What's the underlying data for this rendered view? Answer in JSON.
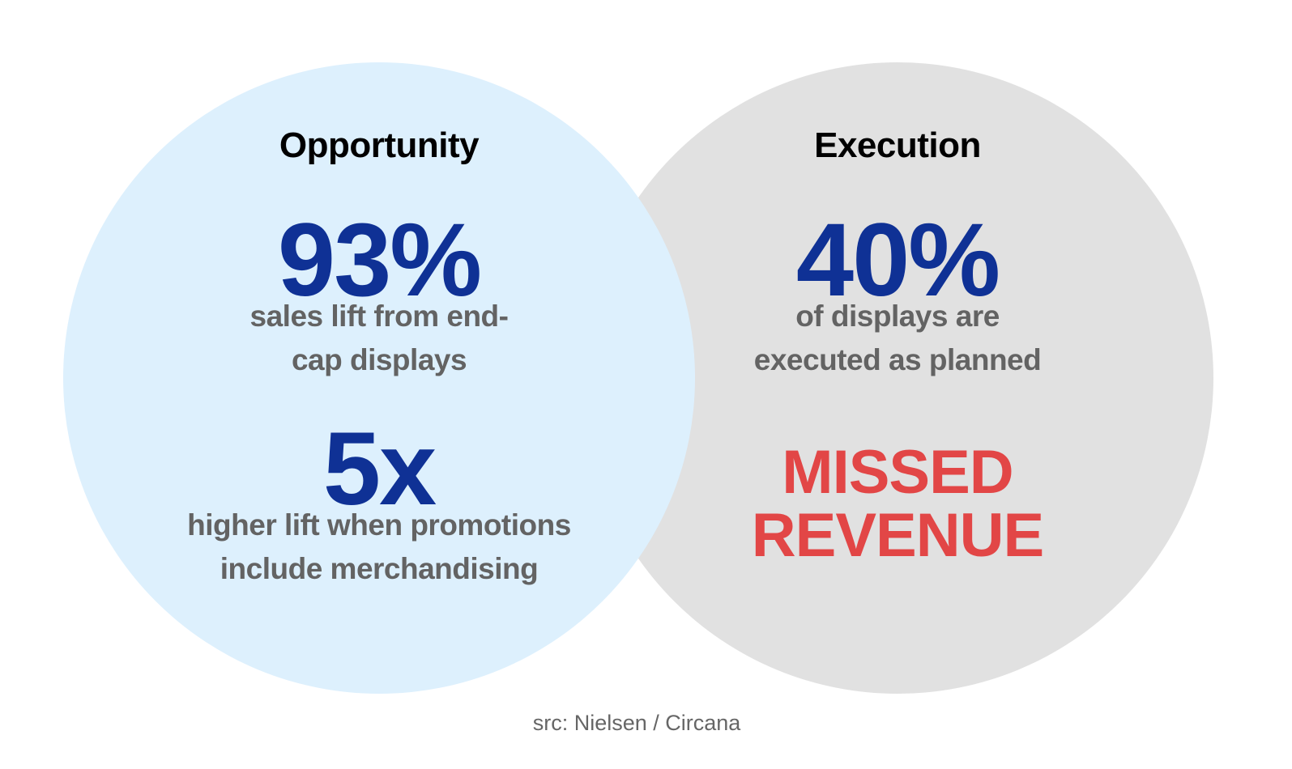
{
  "opportunity": {
    "heading": "Opportunity",
    "stat1_value": "93%",
    "stat1_desc_line1": "sales lift from end-",
    "stat1_desc_line2": "cap displays",
    "stat2_value": "5x",
    "stat2_desc_line1": "higher lift when promotions",
    "stat2_desc_line2": "include merchandising"
  },
  "execution": {
    "heading": "Execution",
    "stat_value": "40%",
    "stat_desc_line1": "of displays are",
    "stat_desc_line2": "executed as planned",
    "alert_line1": "MISSED",
    "alert_line2": "REVENUE"
  },
  "source": "src: Nielsen / Circana",
  "colors": {
    "opportunity_circle": "#ddf0fd",
    "execution_circle": "#e1e1e1",
    "stat_blue": "#0f3195",
    "alert_red": "#e24646",
    "desc_gray": "#636363"
  }
}
